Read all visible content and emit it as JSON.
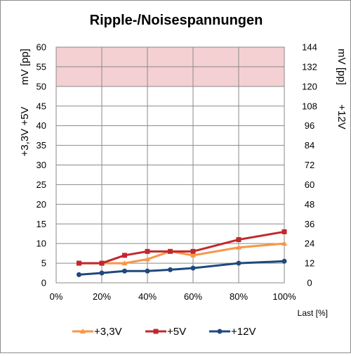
{
  "chart_data": {
    "type": "line",
    "title": "Ripple-/Noisespannungen",
    "xlabel": "Last [%]",
    "ylabel_left_top": "mV [pp]",
    "ylabel_left_bottom": "+3,3V +5V",
    "ylabel_right_top": "mV [pp]",
    "ylabel_right_bottom": "+12V",
    "x_ticks": [
      "0%",
      "20%",
      "40%",
      "60%",
      "80%",
      "100%"
    ],
    "xlim": [
      0,
      100
    ],
    "y_left_ticks": [
      "0",
      "5",
      "10",
      "15",
      "20",
      "25",
      "30",
      "35",
      "40",
      "45",
      "50",
      "55",
      "60"
    ],
    "ylim_left": [
      0,
      60
    ],
    "y_right_ticks": [
      "0",
      "12",
      "24",
      "36",
      "48",
      "60",
      "72",
      "84",
      "96",
      "108",
      "120",
      "132",
      "144"
    ],
    "ylim_right": [
      0,
      144
    ],
    "limit_band": {
      "from": 50,
      "to": 60,
      "color": "#f4d0d3"
    },
    "grid": true,
    "legend_position": "bottom",
    "series": [
      {
        "name": "+3,3V",
        "color": "#f79646",
        "marker": "triangle",
        "axis": "left",
        "x": [
          10,
          20,
          30,
          40,
          50,
          60,
          80,
          100
        ],
        "values": [
          5,
          5,
          5,
          6,
          8,
          7,
          9,
          10
        ]
      },
      {
        "name": "+5V",
        "color": "#c0282d",
        "marker": "square",
        "axis": "left",
        "x": [
          10,
          20,
          30,
          40,
          50,
          60,
          80,
          100
        ],
        "values": [
          5,
          5,
          7,
          8,
          8,
          8,
          11,
          13
        ]
      },
      {
        "name": "+12V",
        "color": "#1f497d",
        "marker": "circle",
        "axis": "right",
        "x": [
          10,
          20,
          30,
          40,
          50,
          60,
          80,
          100
        ],
        "values": [
          5,
          6,
          7.2,
          7.2,
          8,
          9,
          12,
          13.2
        ]
      }
    ]
  }
}
